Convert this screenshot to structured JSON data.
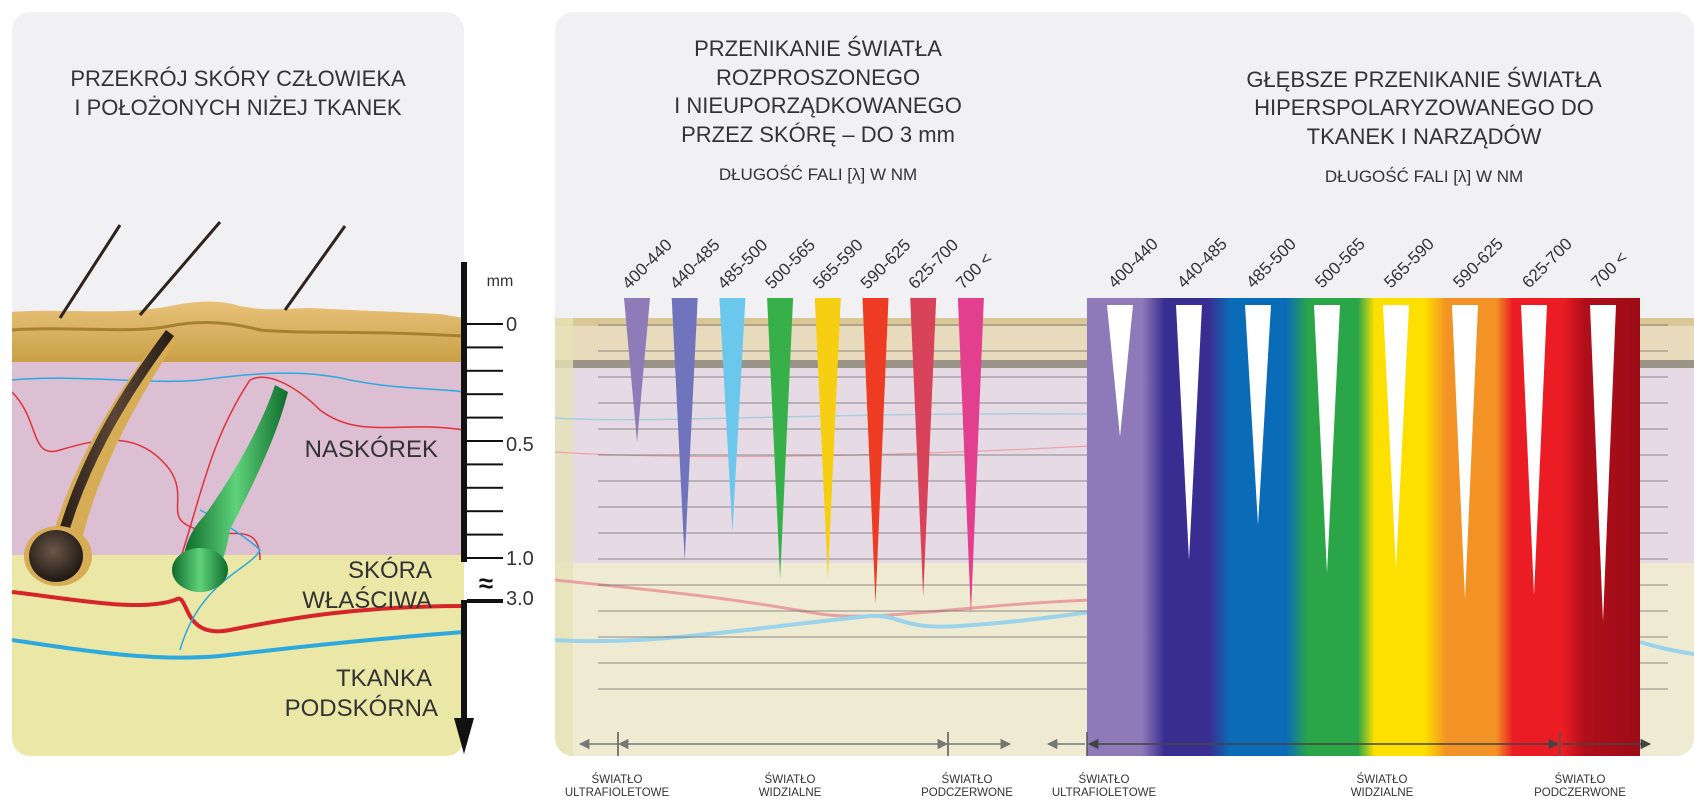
{
  "left_panel": {
    "title_line1": "PRZEKRÓJ SKÓRY CZŁOWIEKA",
    "title_line2": "I POŁOŻONYCH NIŻEJ TKANEK",
    "layers": {
      "epidermis": "NASKÓREK",
      "dermis_line1": "SKÓRA",
      "dermis_line2": "WŁAŚCIWA",
      "subcutis_line1": "TKANKA",
      "subcutis_line2": "PODSKÓRNA"
    },
    "scale": {
      "unit": "mm",
      "ticks": [
        "0",
        "0.5",
        "1.0",
        "3.0"
      ],
      "break_symbol": "≈"
    }
  },
  "middle_panel": {
    "title_lines": [
      "PRZENIKANIE ŚWIATŁA",
      "ROZPROSZONEGO",
      "I NIEUPORZĄDKOWANEGO",
      "PRZEZ SKÓRĘ – DO 3 mm"
    ],
    "subtitle": "DŁUGOŚĆ FALI [λ] W NM",
    "bands": [
      {
        "label": "400-440",
        "color": "#8f7bb8",
        "depth": 0.4
      },
      {
        "label": "440-485",
        "color": "#6f74bd",
        "depth": 0.73
      },
      {
        "label": "485-500",
        "color": "#6cc7ec",
        "depth": 0.65
      },
      {
        "label": "500-565",
        "color": "#38b04a",
        "depth": 0.78
      },
      {
        "label": "565-590",
        "color": "#f6cf13",
        "depth": 0.78
      },
      {
        "label": "590-625",
        "color": "#ee3b24",
        "depth": 0.85
      },
      {
        "label": "625-700",
        "color": "#d9435a",
        "depth": 0.83
      },
      {
        "label": "700 <",
        "color": "#e2408f",
        "depth": 0.88
      }
    ],
    "regions": [
      "ŚWIATŁO ULTRAFIOLETOWE",
      "ŚWIATŁO WIDZIALNE",
      "ŚWIATŁO PODCZERWONE"
    ]
  },
  "right_panel": {
    "title_lines": [
      "GŁĘBSZE PRZENIKANIE ŚWIATŁA",
      "HIPERSPOLARYZOWANEGO DO",
      "TKANEK I NARZĄDÓW"
    ],
    "subtitle": "DŁUGOŚĆ FALI [λ] W NM",
    "bands": [
      {
        "label": "400-440",
        "color": "#8e7ab8",
        "depth": 0.3
      },
      {
        "label": "440-485",
        "color": "#3a2d91",
        "depth": 0.58
      },
      {
        "label": "485-500",
        "color": "#0a6cb8",
        "depth": 0.5
      },
      {
        "label": "500-565",
        "color": "#2aa548",
        "depth": 0.61
      },
      {
        "label": "565-590",
        "color": "#fde000",
        "depth": 0.6
      },
      {
        "label": "590-625",
        "color": "#f39225",
        "depth": 0.67
      },
      {
        "label": "625-700",
        "color": "#ec1c24",
        "depth": 0.66
      },
      {
        "label": "700 <",
        "color": "#b00f1a",
        "depth": 0.72
      }
    ],
    "regions": [
      "ŚWIATŁO ULTRAFIOLETOWE",
      "ŚWIATŁO WIDZIALNE",
      "ŚWIATŁO PODCZERWONE"
    ]
  }
}
